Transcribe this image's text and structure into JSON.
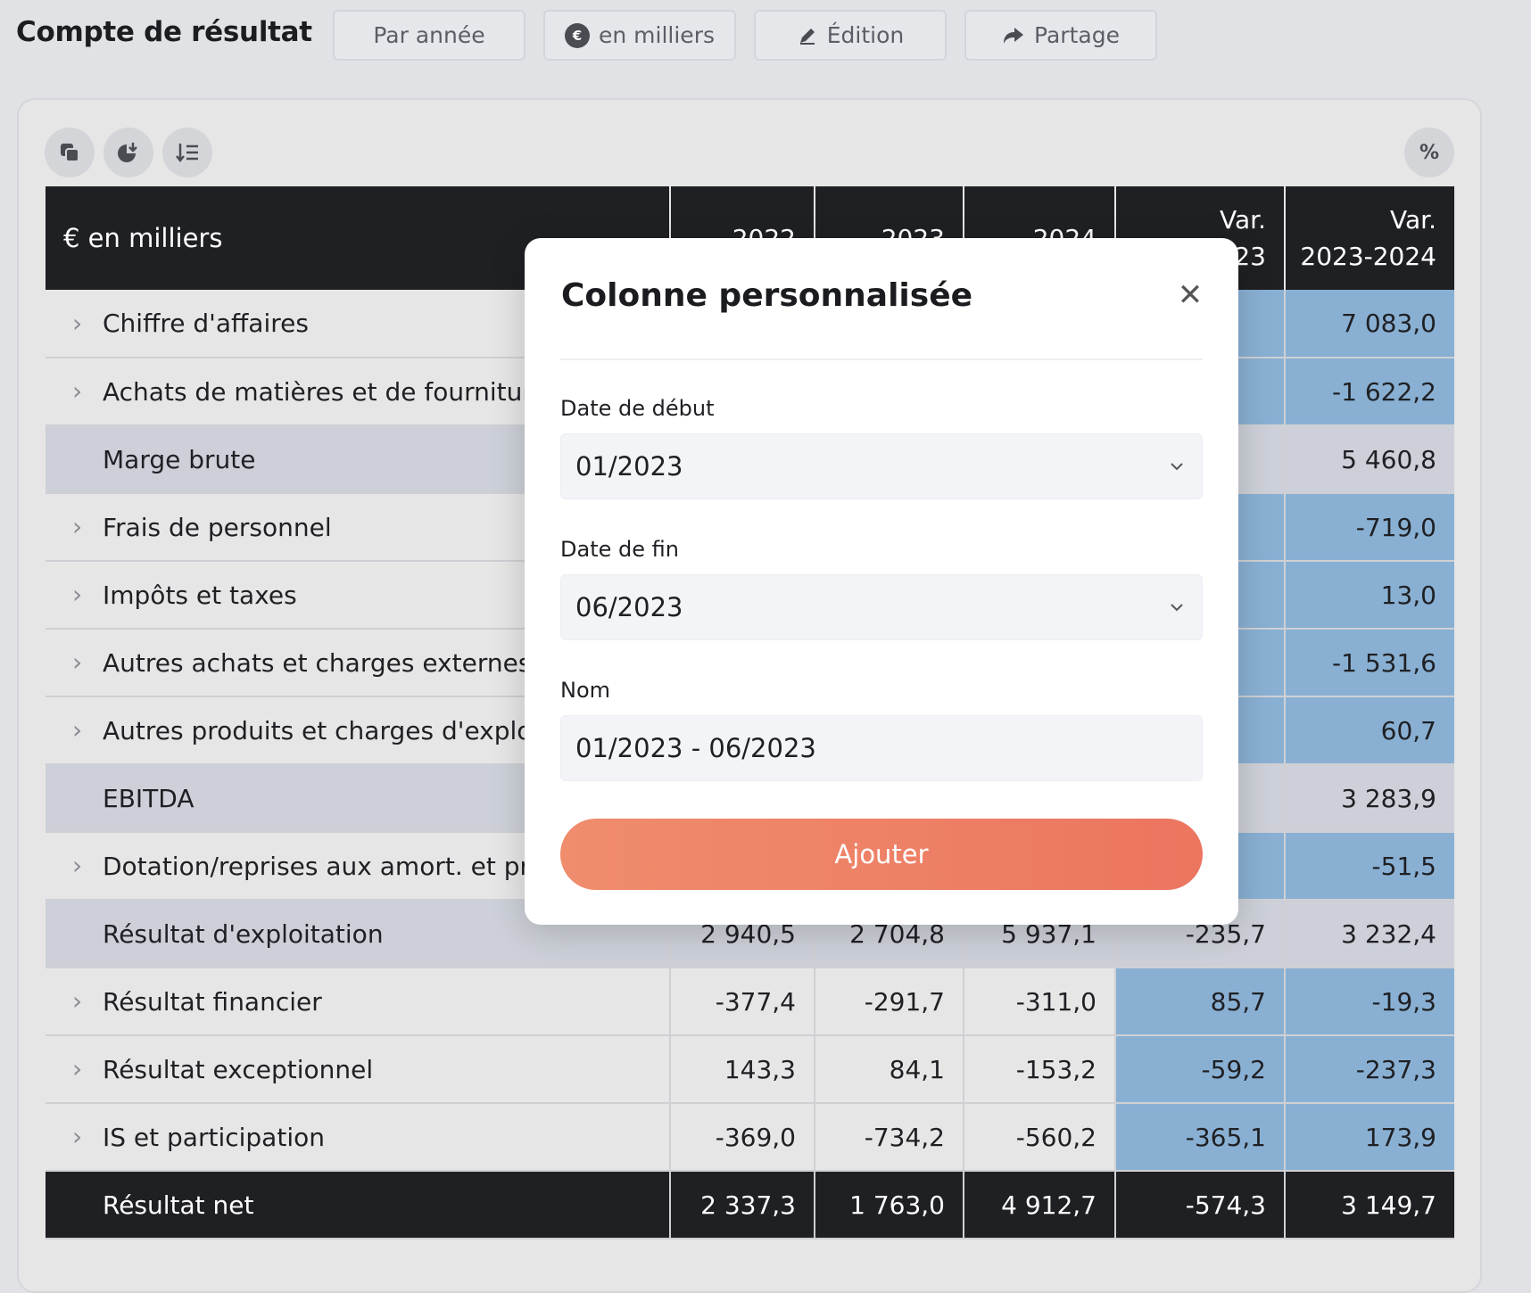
{
  "page": {
    "title": "Compte de résultat"
  },
  "toolbar": {
    "period_label": "Par année",
    "units_label": "en milliers",
    "units_icon_char": "€",
    "edit_label": "Édition",
    "share_label": "Partage"
  },
  "tools": {
    "percent_label": "%"
  },
  "table": {
    "header_label": "€ en milliers",
    "columns": [
      "2022",
      "2023",
      "2024",
      "Var.\n2022-2023",
      "Var.\n2023-2024"
    ],
    "rows": [
      {
        "label": "Chiffre d'affaires",
        "type": "normal",
        "expandable": true,
        "values": [
          "",
          "",
          "",
          "",
          "7 083,0"
        ]
      },
      {
        "label": "Achats de matières et de fournitures",
        "type": "normal",
        "expandable": true,
        "values": [
          "",
          "",
          "",
          "",
          "-1 622,2"
        ]
      },
      {
        "label": "Marge brute",
        "type": "subtotal",
        "expandable": false,
        "values": [
          "",
          "",
          "",
          "",
          "5 460,8"
        ]
      },
      {
        "label": "Frais de personnel",
        "type": "normal",
        "expandable": true,
        "values": [
          "",
          "",
          "",
          "",
          "-719,0"
        ]
      },
      {
        "label": "Impôts et taxes",
        "type": "normal",
        "expandable": true,
        "values": [
          "",
          "",
          "",
          "",
          "13,0"
        ]
      },
      {
        "label": "Autres achats et charges externes",
        "type": "normal",
        "expandable": true,
        "values": [
          "",
          "",
          "",
          "",
          "-1 531,6"
        ]
      },
      {
        "label": "Autres produits et charges d'exploitation",
        "type": "normal",
        "expandable": true,
        "values": [
          "",
          "",
          "",
          "",
          "60,7"
        ]
      },
      {
        "label": "EBITDA",
        "type": "subtotal",
        "expandable": false,
        "values": [
          "",
          "",
          "",
          "",
          "3 283,9"
        ]
      },
      {
        "label": "Dotation/reprises aux amort. et provisions",
        "type": "normal",
        "expandable": true,
        "values": [
          "",
          "",
          "",
          "",
          "-51,5"
        ]
      },
      {
        "label": "Résultat d'exploitation",
        "type": "subtotal",
        "expandable": false,
        "values": [
          "2 940,5",
          "2 704,8",
          "5 937,1",
          "-235,7",
          "3 232,4"
        ]
      },
      {
        "label": "Résultat financier",
        "type": "normal",
        "expandable": true,
        "values": [
          "-377,4",
          "-291,7",
          "-311,0",
          "85,7",
          "-19,3"
        ]
      },
      {
        "label": "Résultat exceptionnel",
        "type": "normal",
        "expandable": true,
        "values": [
          "143,3",
          "84,1",
          "-153,2",
          "-59,2",
          "-237,3"
        ]
      },
      {
        "label": "IS et participation",
        "type": "normal",
        "expandable": true,
        "values": [
          "-369,0",
          "-734,2",
          "-560,2",
          "-365,1",
          "173,9"
        ]
      },
      {
        "label": "Résultat net",
        "type": "total",
        "expandable": false,
        "values": [
          "2 337,3",
          "1 763,0",
          "4 912,7",
          "-574,3",
          "3 149,7"
        ]
      }
    ]
  },
  "modal": {
    "title": "Colonne personnalisée",
    "start_label": "Date de début",
    "start_value": "01/2023",
    "end_label": "Date de fin",
    "end_value": "06/2023",
    "name_label": "Nom",
    "name_value": "01/2023 - 06/2023",
    "submit_label": "Ajouter"
  }
}
